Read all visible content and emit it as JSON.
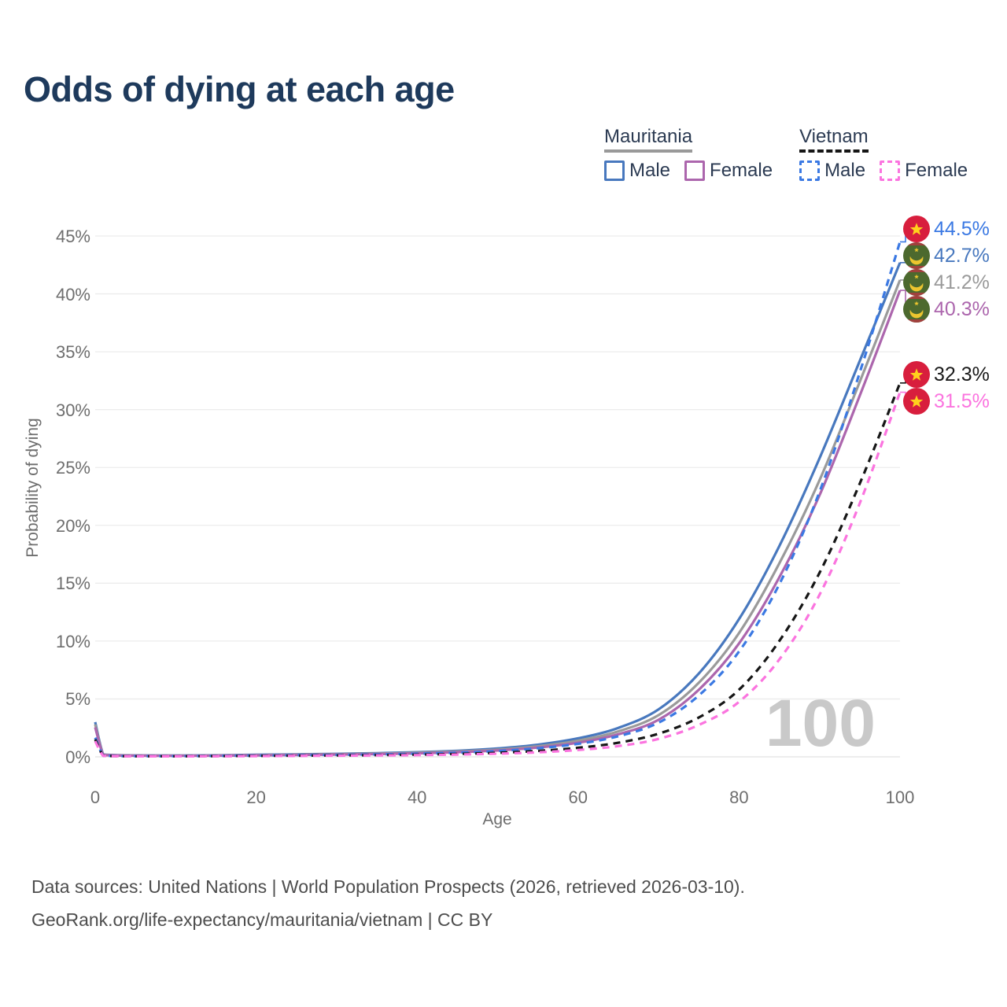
{
  "header": {
    "title": "Odds of dying at each age",
    "title_color": "#1E3A5C"
  },
  "legend": {
    "groups": [
      {
        "country": "Mauritania",
        "style": "solid",
        "underline_color": "#999999",
        "items": [
          {
            "label": "Male",
            "color": "#4878BE"
          },
          {
            "label": "Female",
            "color": "#AC66AD"
          }
        ]
      },
      {
        "country": "Vietnam",
        "style": "dashed",
        "underline_color": "#151515",
        "items": [
          {
            "label": "Male",
            "color": "#3B79E3"
          },
          {
            "label": "Female",
            "color": "#FB74DF"
          }
        ]
      }
    ]
  },
  "chart_data": {
    "type": "line",
    "title": "Odds of dying at each age",
    "xlabel": "Age",
    "ylabel": "Probability of dying",
    "xlim": [
      0,
      100
    ],
    "ylim": [
      0,
      45
    ],
    "x_ticks": [
      "0",
      "20",
      "40",
      "60",
      "80",
      "100"
    ],
    "y_ticks": [
      "0%",
      "5%",
      "10%",
      "15%",
      "20%",
      "25%",
      "30%",
      "35%",
      "40%",
      "45%"
    ],
    "grid": "horizontal-only",
    "legend_position": "top-right",
    "age_cursor_label": "100",
    "series": [
      {
        "id": "mauritania-male",
        "country": "Mauritania",
        "sex": "Male",
        "color": "#4878BE",
        "dash": false,
        "flag": "mauritania",
        "end_value": 42.7,
        "end_label": "42.7%",
        "label_color": "#4878BE",
        "points": [
          [
            0,
            3.0
          ],
          [
            1,
            0.22
          ],
          [
            2,
            0.16
          ],
          [
            5,
            0.12
          ],
          [
            10,
            0.11
          ],
          [
            15,
            0.13
          ],
          [
            20,
            0.18
          ],
          [
            25,
            0.22
          ],
          [
            30,
            0.26
          ],
          [
            35,
            0.32
          ],
          [
            40,
            0.4
          ],
          [
            45,
            0.52
          ],
          [
            50,
            0.72
          ],
          [
            55,
            1.05
          ],
          [
            60,
            1.6
          ],
          [
            65,
            2.5
          ],
          [
            70,
            4.1
          ],
          [
            75,
            7.2
          ],
          [
            80,
            11.9
          ],
          [
            85,
            18.2
          ],
          [
            90,
            25.8
          ],
          [
            95,
            34.2
          ],
          [
            100,
            42.7
          ]
        ]
      },
      {
        "id": "mauritania-combined",
        "country": "Mauritania",
        "sex": "",
        "color": "#9A9A9A",
        "dash": false,
        "flag": "mauritania",
        "end_value": 41.2,
        "end_label": "41.2%",
        "label_color": "#9A9A9A",
        "points": [
          [
            0,
            2.8
          ],
          [
            1,
            0.2
          ],
          [
            2,
            0.15
          ],
          [
            5,
            0.11
          ],
          [
            10,
            0.1
          ],
          [
            15,
            0.11
          ],
          [
            20,
            0.15
          ],
          [
            25,
            0.19
          ],
          [
            30,
            0.23
          ],
          [
            35,
            0.28
          ],
          [
            40,
            0.35
          ],
          [
            45,
            0.46
          ],
          [
            50,
            0.62
          ],
          [
            55,
            0.91
          ],
          [
            60,
            1.4
          ],
          [
            65,
            2.2
          ],
          [
            70,
            3.6
          ],
          [
            75,
            6.4
          ],
          [
            80,
            10.7
          ],
          [
            85,
            16.7
          ],
          [
            90,
            23.9
          ],
          [
            95,
            32.4
          ],
          [
            100,
            41.2
          ]
        ]
      },
      {
        "id": "mauritania-female",
        "country": "Mauritania",
        "sex": "Female",
        "color": "#AC66AD",
        "dash": false,
        "flag": "mauritania",
        "end_value": 40.3,
        "end_label": "40.3%",
        "label_color": "#AC66AD",
        "points": [
          [
            0,
            2.55
          ],
          [
            1,
            0.18
          ],
          [
            2,
            0.13
          ],
          [
            5,
            0.1
          ],
          [
            10,
            0.09
          ],
          [
            15,
            0.1
          ],
          [
            20,
            0.13
          ],
          [
            25,
            0.16
          ],
          [
            30,
            0.2
          ],
          [
            35,
            0.24
          ],
          [
            40,
            0.3
          ],
          [
            45,
            0.4
          ],
          [
            50,
            0.55
          ],
          [
            55,
            0.8
          ],
          [
            60,
            1.22
          ],
          [
            65,
            1.95
          ],
          [
            70,
            3.2
          ],
          [
            75,
            5.8
          ],
          [
            80,
            9.8
          ],
          [
            85,
            15.5
          ],
          [
            90,
            22.6
          ],
          [
            95,
            31.2
          ],
          [
            100,
            40.3
          ]
        ]
      },
      {
        "id": "vietnam-male",
        "country": "Vietnam",
        "sex": "Male",
        "color": "#3B79E3",
        "dash": true,
        "flag": "vietnam",
        "end_value": 44.5,
        "end_label": "44.5%",
        "label_color": "#3B79E3",
        "points": [
          [
            0,
            1.65
          ],
          [
            1,
            0.12
          ],
          [
            2,
            0.08
          ],
          [
            5,
            0.06
          ],
          [
            10,
            0.06
          ],
          [
            15,
            0.08
          ],
          [
            20,
            0.11
          ],
          [
            25,
            0.14
          ],
          [
            30,
            0.17
          ],
          [
            35,
            0.21
          ],
          [
            40,
            0.27
          ],
          [
            45,
            0.36
          ],
          [
            50,
            0.5
          ],
          [
            55,
            0.74
          ],
          [
            60,
            1.12
          ],
          [
            65,
            1.78
          ],
          [
            70,
            2.95
          ],
          [
            75,
            5.3
          ],
          [
            80,
            9.1
          ],
          [
            85,
            14.9
          ],
          [
            90,
            22.9
          ],
          [
            95,
            33.2
          ],
          [
            100,
            44.5
          ]
        ]
      },
      {
        "id": "vietnam-combined",
        "country": "Vietnam",
        "sex": "",
        "color": "#161616",
        "dash": true,
        "flag": "vietnam",
        "end_value": 32.3,
        "end_label": "32.3%",
        "label_color": "#1A1A1A",
        "points": [
          [
            0,
            1.5
          ],
          [
            1,
            0.1
          ],
          [
            2,
            0.07
          ],
          [
            5,
            0.05
          ],
          [
            10,
            0.05
          ],
          [
            15,
            0.06
          ],
          [
            20,
            0.08
          ],
          [
            25,
            0.1
          ],
          [
            30,
            0.12
          ],
          [
            35,
            0.15
          ],
          [
            40,
            0.19
          ],
          [
            45,
            0.25
          ],
          [
            50,
            0.35
          ],
          [
            55,
            0.51
          ],
          [
            60,
            0.78
          ],
          [
            65,
            1.22
          ],
          [
            70,
            2.0
          ],
          [
            75,
            3.4
          ],
          [
            80,
            5.8
          ],
          [
            85,
            10.0
          ],
          [
            90,
            15.9
          ],
          [
            95,
            23.6
          ],
          [
            100,
            32.3
          ]
        ]
      },
      {
        "id": "vietnam-female",
        "country": "Vietnam",
        "sex": "Female",
        "color": "#FB74DF",
        "dash": true,
        "flag": "vietnam",
        "end_value": 31.5,
        "end_label": "31.5%",
        "label_color": "#FB74DF",
        "points": [
          [
            0,
            1.35
          ],
          [
            1,
            0.09
          ],
          [
            2,
            0.06
          ],
          [
            5,
            0.04
          ],
          [
            10,
            0.04
          ],
          [
            15,
            0.05
          ],
          [
            20,
            0.06
          ],
          [
            25,
            0.08
          ],
          [
            30,
            0.1
          ],
          [
            35,
            0.12
          ],
          [
            40,
            0.15
          ],
          [
            45,
            0.2
          ],
          [
            50,
            0.27
          ],
          [
            55,
            0.39
          ],
          [
            60,
            0.59
          ],
          [
            65,
            0.93
          ],
          [
            70,
            1.55
          ],
          [
            75,
            2.75
          ],
          [
            80,
            4.75
          ],
          [
            85,
            8.4
          ],
          [
            90,
            14.0
          ],
          [
            95,
            21.9
          ],
          [
            100,
            31.5
          ]
        ]
      }
    ]
  },
  "colors": {
    "watermark": "#C9C9C9",
    "gridline": "#ECECEC",
    "gridline_zero": "#E2E2E2",
    "axis_text": "#6E6E6E",
    "vietnam_flag_red": "#D81E3D",
    "vietnam_flag_star": "#FFD21D",
    "mauritania_flag_green": "#4C692E",
    "mauritania_flag_gold": "#ECC52F"
  },
  "footer": {
    "lines": [
      "Data sources: United Nations | World Population Prospects (2026, retrieved 2026-03-10).",
      "GeoRank.org/life-expectancy/mauritania/vietnam | CC BY"
    ]
  }
}
